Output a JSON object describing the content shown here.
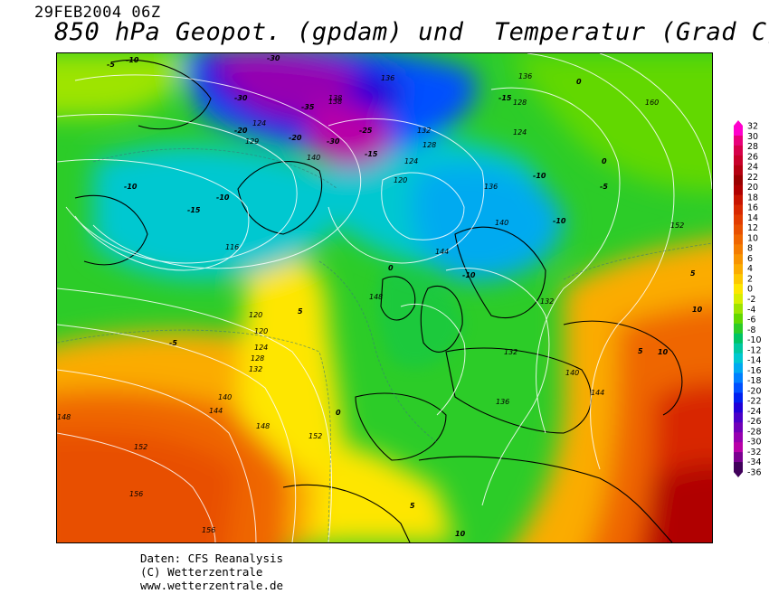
{
  "header": {
    "date": "29FEB2004 06Z",
    "title": "850 hPa Geopot. (gpdam) und  Temperatur (Grad C)"
  },
  "footer": {
    "source": "Daten: CFS Reanalysis",
    "copyright": "(C) Wetterzentrale",
    "url": "www.wetterzentrale.de"
  },
  "legend": {
    "ticks": [
      "32",
      "30",
      "28",
      "26",
      "24",
      "22",
      "20",
      "18",
      "16",
      "14",
      "12",
      "10",
      "8",
      "6",
      "4",
      "2",
      "0",
      "-2",
      "-4",
      "-6",
      "-8",
      "-10",
      "-12",
      "-14",
      "-16",
      "-18",
      "-20",
      "-22",
      "-24",
      "-26",
      "-28",
      "-30",
      "-32",
      "-34",
      "-36"
    ],
    "colors": [
      "#ff00cc",
      "#e8007a",
      "#d6004a",
      "#c8002a",
      "#b40010",
      "#9a0000",
      "#b00000",
      "#c81400",
      "#d82800",
      "#e23c00",
      "#e85000",
      "#ef6600",
      "#f47c00",
      "#f89400",
      "#fbac00",
      "#fdc800",
      "#fee600",
      "#d8ee00",
      "#9ee400",
      "#62d800",
      "#2ccc28",
      "#00c464",
      "#00c8a0",
      "#00c8d0",
      "#00aaf0",
      "#0080ff",
      "#0050ff",
      "#0020f0",
      "#2000d8",
      "#4a00c8",
      "#7000b8",
      "#9600b0",
      "#b800a8",
      "#7a0090",
      "#40005a"
    ]
  },
  "map": {
    "geopotential_labels": [
      "160",
      "156",
      "156",
      "152",
      "152",
      "152",
      "148",
      "148",
      "148",
      "144",
      "144",
      "144",
      "140",
      "140",
      "140",
      "140",
      "138",
      "138",
      "136",
      "136",
      "136",
      "136",
      "132",
      "132",
      "132",
      "132",
      "128",
      "128",
      "128",
      "124",
      "124",
      "124",
      "124",
      "120",
      "120",
      "120",
      "116",
      "129"
    ],
    "temperature_labels": [
      "-5",
      "-5",
      "-5",
      "-10",
      "-10",
      "-10",
      "-10",
      "-10",
      "-10",
      "-15",
      "-15",
      "-15",
      "-20",
      "-20",
      "-25",
      "-30",
      "-30",
      "-30",
      "-35",
      "0",
      "0",
      "0",
      "0",
      "5",
      "5",
      "5",
      "5",
      "10",
      "10",
      "10"
    ]
  }
}
